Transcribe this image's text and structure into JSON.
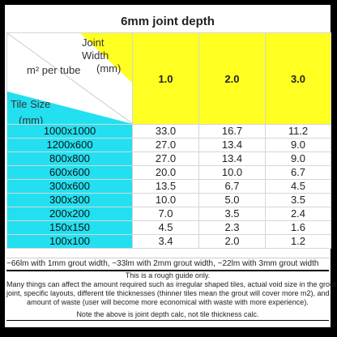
{
  "title": "6mm joint depth",
  "corner": {
    "joint_width_line1": "Joint Width",
    "joint_width_line2": "(mm)",
    "m2_label": "m² per tube",
    "tile_size_line1": "Tile Size",
    "tile_size_line2": "(mm)"
  },
  "colors": {
    "header_yellow": "#ffff22",
    "tile_cyan": "#22e0f0"
  },
  "joint_widths": [
    "1.0",
    "2.0",
    "3.0"
  ],
  "rows": [
    {
      "size": "1000x1000",
      "values": [
        "33.0",
        "16.7",
        "11.2"
      ]
    },
    {
      "size": "1200x600",
      "values": [
        "27.0",
        "13.4",
        "9.0"
      ]
    },
    {
      "size": "800x800",
      "values": [
        "27.0",
        "13.4",
        "9.0"
      ]
    },
    {
      "size": "600x600",
      "values": [
        "20.0",
        "10.0",
        "6.7"
      ]
    },
    {
      "size": "300x600",
      "values": [
        "13.5",
        "6.7",
        "4.5"
      ]
    },
    {
      "size": "300x300",
      "values": [
        "10.0",
        "5.0",
        "3.5"
      ]
    },
    {
      "size": "200x200",
      "values": [
        "7.0",
        "3.5",
        "2.4"
      ]
    },
    {
      "size": "150x150",
      "values": [
        "4.5",
        "2.3",
        "1.6"
      ]
    },
    {
      "size": "100x100",
      "values": [
        "3.4",
        "2.0",
        "1.2"
      ]
    }
  ],
  "notes": {
    "summary": "~66lm with 1mm grout width, ~33lm with 2mm grout width, ~22lm with 3mm grout width",
    "guide_line1": "This is a rough guide only.",
    "guide_line2": "Many things can affect the amount required such as irregular shaped tiles, actual void size in the grout",
    "guide_line3": "joint, specific layouts, different tile thicknesses (thinner tiles mean the grout will cover more m2), and",
    "guide_line4": "amount of waste (user will become more economical with waste with more experience).",
    "footer": "Note the above is joint depth calc, not tile thickness calc."
  }
}
